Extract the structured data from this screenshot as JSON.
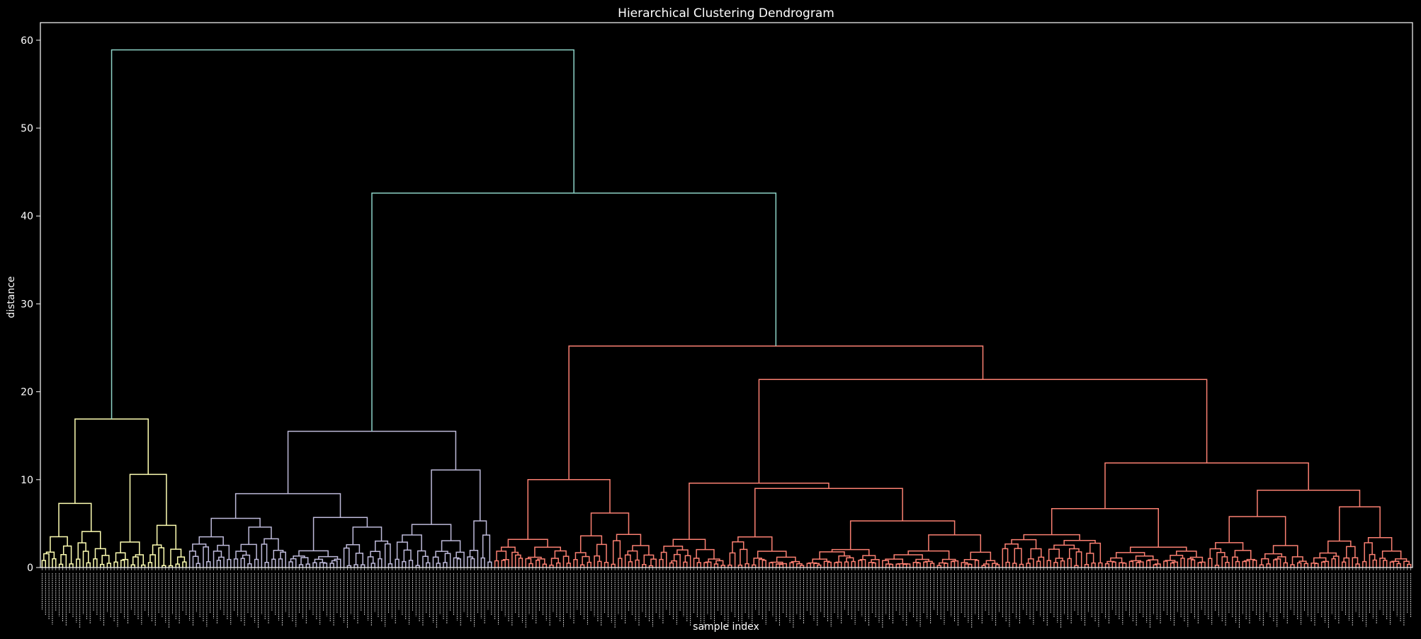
{
  "chart_data": {
    "type": "dendrogram",
    "title": "Hierarchical Clustering Dendrogram",
    "xlabel": "sample index",
    "ylabel": "distance",
    "ylim": [
      0,
      62
    ],
    "yticks": [
      0,
      10,
      20,
      30,
      40,
      50,
      60
    ],
    "grid": false,
    "colors": {
      "background": "#000000",
      "axes": "#ffffff",
      "above_threshold": "#8dd3c7",
      "cluster_1": "#ffffb3",
      "cluster_2": "#bebada",
      "cluster_3": "#fb8072"
    },
    "leaf_count": 400,
    "clusters": [
      {
        "name": "C1",
        "color_key": "cluster_1",
        "leaf_start": 0,
        "leaf_end": 43,
        "sub_merges": [
          {
            "l": [
              0,
              21
            ],
            "r": [
              21,
              43
            ],
            "h": 16.9
          },
          {
            "l": [
              0,
              10
            ],
            "r": [
              10,
              21
            ],
            "h": 7.3
          },
          {
            "l": [
              0,
              5
            ],
            "r": [
              5,
              10
            ],
            "h": 3.5
          },
          {
            "l": [
              10,
              15
            ],
            "r": [
              15,
              21
            ],
            "h": 4.1
          },
          {
            "l": [
              21,
              31
            ],
            "r": [
              31,
              43
            ],
            "h": 10.6
          },
          {
            "l": [
              21,
              26
            ],
            "r": [
              26,
              31
            ],
            "h": 2.9
          },
          {
            "l": [
              31,
              37
            ],
            "r": [
              37,
              43
            ],
            "h": 4.8
          }
        ]
      },
      {
        "name": "C2",
        "color_key": "cluster_2",
        "leaf_start": 43,
        "leaf_end": 132,
        "sub_merges": [
          {
            "l": [
              43,
              103
            ],
            "r": [
              103,
              132
            ],
            "h": 15.5
          },
          {
            "l": [
              43,
              72
            ],
            "r": [
              72,
              103
            ],
            "h": 8.4
          },
          {
            "l": [
              43,
              56
            ],
            "r": [
              56,
              72
            ],
            "h": 5.6
          },
          {
            "l": [
              56,
              64
            ],
            "r": [
              64,
              72
            ],
            "h": 4.6
          },
          {
            "l": [
              72,
              88
            ],
            "r": [
              88,
              103
            ],
            "h": 5.7
          },
          {
            "l": [
              88,
              95
            ],
            "r": [
              95,
              103
            ],
            "h": 4.6
          },
          {
            "l": [
              103,
              124
            ],
            "r": [
              124,
              132
            ],
            "h": 11.1
          },
          {
            "l": [
              103,
              114
            ],
            "r": [
              114,
              124
            ],
            "h": 4.9
          },
          {
            "l": [
              124,
              128
            ],
            "r": [
              128,
              132
            ],
            "h": 5.3
          }
        ]
      },
      {
        "name": "C3",
        "color_key": "cluster_3",
        "leaf_start": 132,
        "leaf_end": 400,
        "sub_merges": [
          {
            "l": [
              132,
              180
            ],
            "r": [
              180,
              400
            ],
            "h": 25.2
          },
          {
            "l": [
              132,
              155
            ],
            "r": [
              155,
              180
            ],
            "h": 10.0
          },
          {
            "l": [
              132,
              141
            ],
            "r": [
              141,
              155
            ],
            "h": 3.2
          },
          {
            "l": [
              155,
              166
            ],
            "r": [
              166,
              180
            ],
            "h": 6.2
          },
          {
            "l": [
              180,
              280
            ],
            "r": [
              280,
              400
            ],
            "h": 21.4
          },
          {
            "l": [
              180,
              200
            ],
            "r": [
              200,
              280
            ],
            "h": 9.6
          },
          {
            "l": [
              180,
              190
            ],
            "r": [
              190,
              200
            ],
            "h": 3.2
          },
          {
            "l": [
              200,
              223
            ],
            "r": [
              223,
              280
            ],
            "h": 9.0
          },
          {
            "l": [
              223,
              245
            ],
            "r": [
              245,
              280
            ],
            "h": 5.3
          },
          {
            "l": [
              280,
              340
            ],
            "r": [
              340,
              400
            ],
            "h": 11.9
          },
          {
            "l": [
              280,
              310
            ],
            "r": [
              310,
              340
            ],
            "h": 6.7
          },
          {
            "l": [
              340,
              370
            ],
            "r": [
              370,
              400
            ],
            "h": 8.8
          },
          {
            "l": [
              340,
              355
            ],
            "r": [
              355,
              370
            ],
            "h": 5.8
          },
          {
            "l": [
              370,
              385
            ],
            "r": [
              385,
              400
            ],
            "h": 6.9
          }
        ]
      }
    ],
    "top_links": [
      {
        "l": [
          0,
          43
        ],
        "r": [
          43,
          400
        ],
        "h": 58.9,
        "color_key": "above_threshold"
      },
      {
        "l": [
          43,
          132
        ],
        "r": [
          132,
          400
        ],
        "h": 42.6,
        "color_key": "above_threshold"
      }
    ]
  }
}
